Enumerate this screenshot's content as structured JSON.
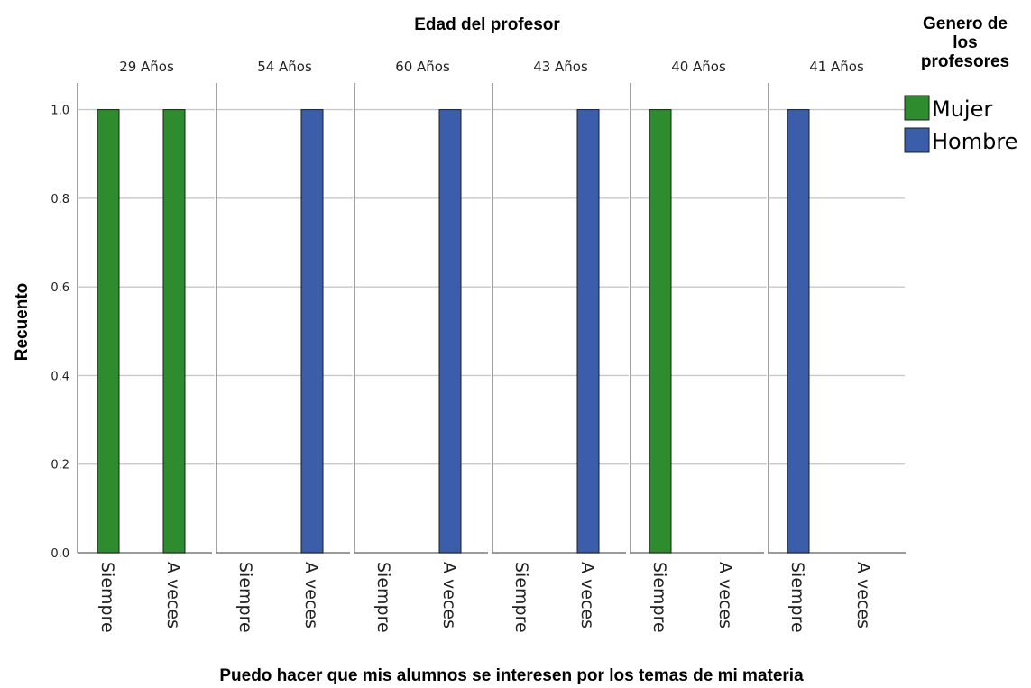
{
  "chart_data": {
    "type": "bar",
    "title": "Edad del profesor",
    "xlabel": "Puedo hacer que mis alumnos se interesen por los temas de mi materia",
    "ylabel": "Recuento",
    "ylim": [
      0,
      1.05
    ],
    "yticks": [
      "0.0",
      "0.2",
      "0.4",
      "0.6",
      "0.8",
      "1.0"
    ],
    "ytick_values": [
      0,
      0.2,
      0.4,
      0.6,
      0.8,
      1.0
    ],
    "categories": [
      "Siempre",
      "A veces"
    ],
    "grid": true,
    "legend": {
      "title_lines": [
        "Genero de",
        "los",
        "profesores"
      ],
      "position": "right",
      "entries": [
        {
          "name": "Mujer",
          "color": "#2e8b2e"
        },
        {
          "name": "Hombre",
          "color": "#3b5daa"
        }
      ]
    },
    "panels": [
      {
        "label": "29 Años",
        "bars": [
          {
            "category": "Siempre",
            "series": "Mujer",
            "value": 1
          },
          {
            "category": "A veces",
            "series": "Mujer",
            "value": 1
          }
        ]
      },
      {
        "label": "54 Años",
        "bars": [
          {
            "category": "A veces",
            "series": "Hombre",
            "value": 1
          }
        ]
      },
      {
        "label": "60 Años",
        "bars": [
          {
            "category": "A veces",
            "series": "Hombre",
            "value": 1
          }
        ]
      },
      {
        "label": "43 Años",
        "bars": [
          {
            "category": "A veces",
            "series": "Hombre",
            "value": 1
          }
        ]
      },
      {
        "label": "40 Años",
        "bars": [
          {
            "category": "Siempre",
            "series": "Mujer",
            "value": 1
          }
        ]
      },
      {
        "label": "41 Años",
        "bars": [
          {
            "category": "Siempre",
            "series": "Hombre",
            "value": 1
          }
        ]
      }
    ]
  }
}
